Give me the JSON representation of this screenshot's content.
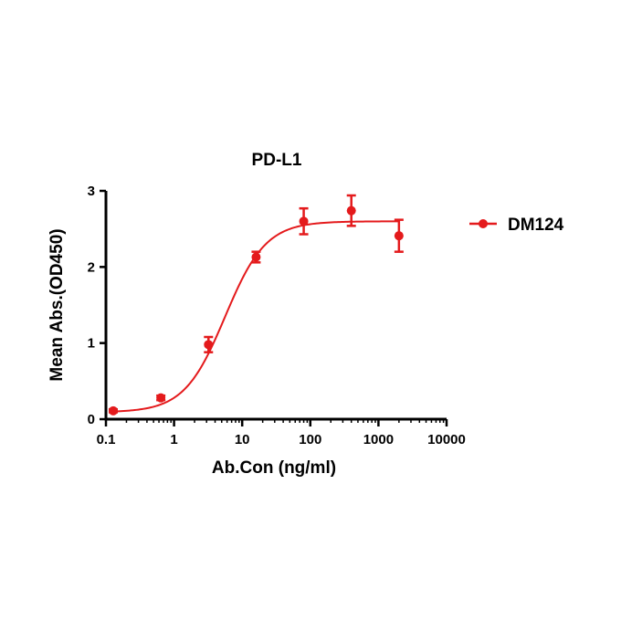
{
  "chart_data": {
    "type": "scatter",
    "title": "PD-L1",
    "xlabel": "Ab.Con (ng/ml)",
    "ylabel": "Mean Abs.(OD450)",
    "xscale": "log",
    "xlim": [
      0.1,
      10000
    ],
    "ylim": [
      0,
      3
    ],
    "xticks": [
      "0.1",
      "1",
      "10",
      "100",
      "1000",
      "10000"
    ],
    "yticks": [
      "0",
      "1",
      "2",
      "3"
    ],
    "grid": false,
    "legend_position": "right",
    "color": "#e41a1c",
    "series": [
      {
        "name": "DM124",
        "x": [
          0.128,
          0.64,
          3.2,
          16,
          80,
          400,
          2000
        ],
        "y": [
          0.11,
          0.28,
          0.98,
          2.13,
          2.6,
          2.74,
          2.41
        ],
        "error": [
          0.02,
          0.03,
          0.1,
          0.07,
          0.17,
          0.2,
          0.21
        ],
        "fit": {
          "model": "4PL",
          "bottom": 0.09,
          "top": 2.6,
          "ec50": 5.6,
          "hill": 1.45
        }
      }
    ]
  }
}
